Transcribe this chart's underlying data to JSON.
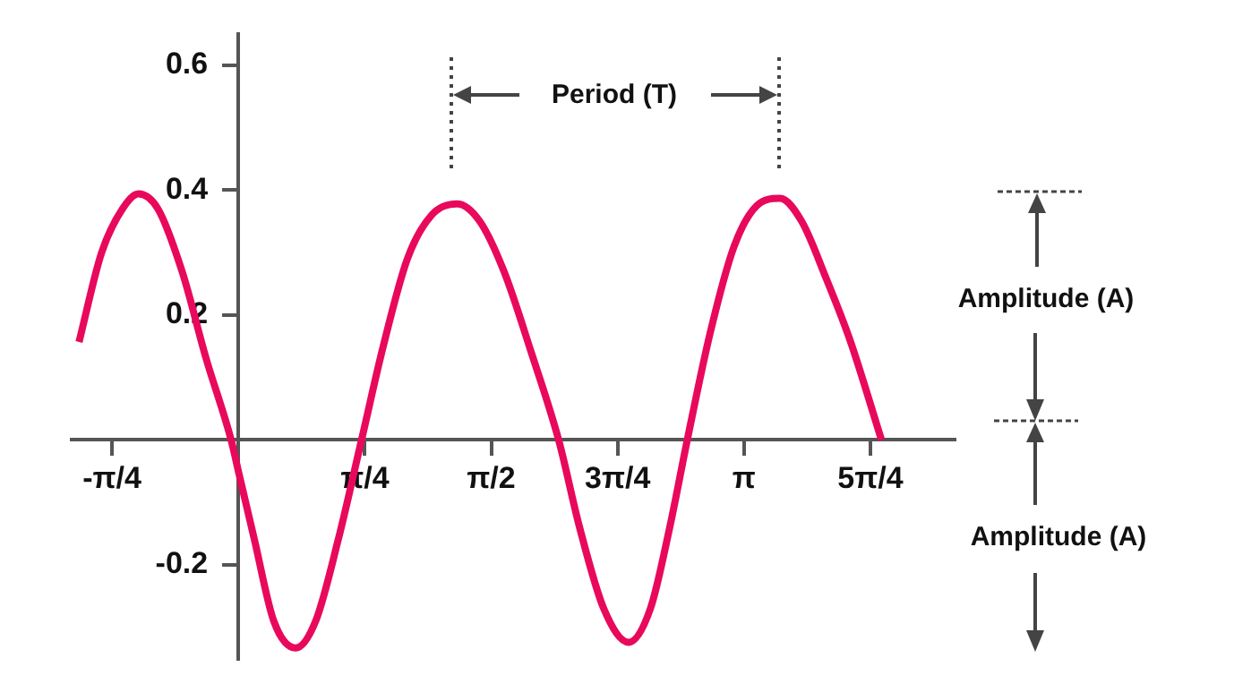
{
  "chart_data": {
    "type": "line",
    "x": [
      -0.99,
      -0.85,
      -0.72,
      -0.62,
      -0.5,
      -0.35,
      -0.2,
      -0.045,
      0,
      0.1,
      0.22,
      0.356,
      0.48,
      0.62,
      0.765,
      0.9,
      1.05,
      1.2,
      1.359,
      1.5,
      1.65,
      1.82,
      1.99,
      2.12,
      2.27,
      2.425,
      2.56,
      2.68,
      2.789,
      2.93,
      3.08,
      3.22,
      3.364,
      3.5,
      3.65,
      3.8,
      3.996
    ],
    "series": [
      {
        "color": "#e8095c",
        "values": [
          0.157,
          0.3,
          0.37,
          0.394,
          0.37,
          0.27,
          0.13,
          0,
          -0.05,
          -0.16,
          -0.29,
          -0.333,
          -0.29,
          -0.16,
          0,
          0.15,
          0.29,
          0.36,
          0.378,
          0.35,
          0.27,
          0.14,
          0,
          -0.14,
          -0.27,
          -0.324,
          -0.27,
          -0.14,
          0,
          0.17,
          0.31,
          0.375,
          0.387,
          0.35,
          0.26,
          0.16,
          0
        ]
      }
    ],
    "xlim": [
      -1.036,
      4.45
    ],
    "ylim": [
      -0.35,
      0.65
    ],
    "xticks": [
      {
        "value": -0.7854,
        "label": "-π/4"
      },
      {
        "value": 0.7854,
        "label": "π/4"
      },
      {
        "value": 1.5708,
        "label": "π/2"
      },
      {
        "value": 2.3562,
        "label": "3π/4"
      },
      {
        "value": 3.1416,
        "label": "π"
      },
      {
        "value": 3.927,
        "label": "5π/4"
      }
    ],
    "yticks": [
      0.6,
      0.4,
      0.2,
      -0.2
    ],
    "grid": false,
    "legend": false,
    "marker": "none",
    "line_style": "solid",
    "annotations": [
      "Period (T)",
      "Amplitude (A)",
      "Amplitude (A)"
    ]
  }
}
